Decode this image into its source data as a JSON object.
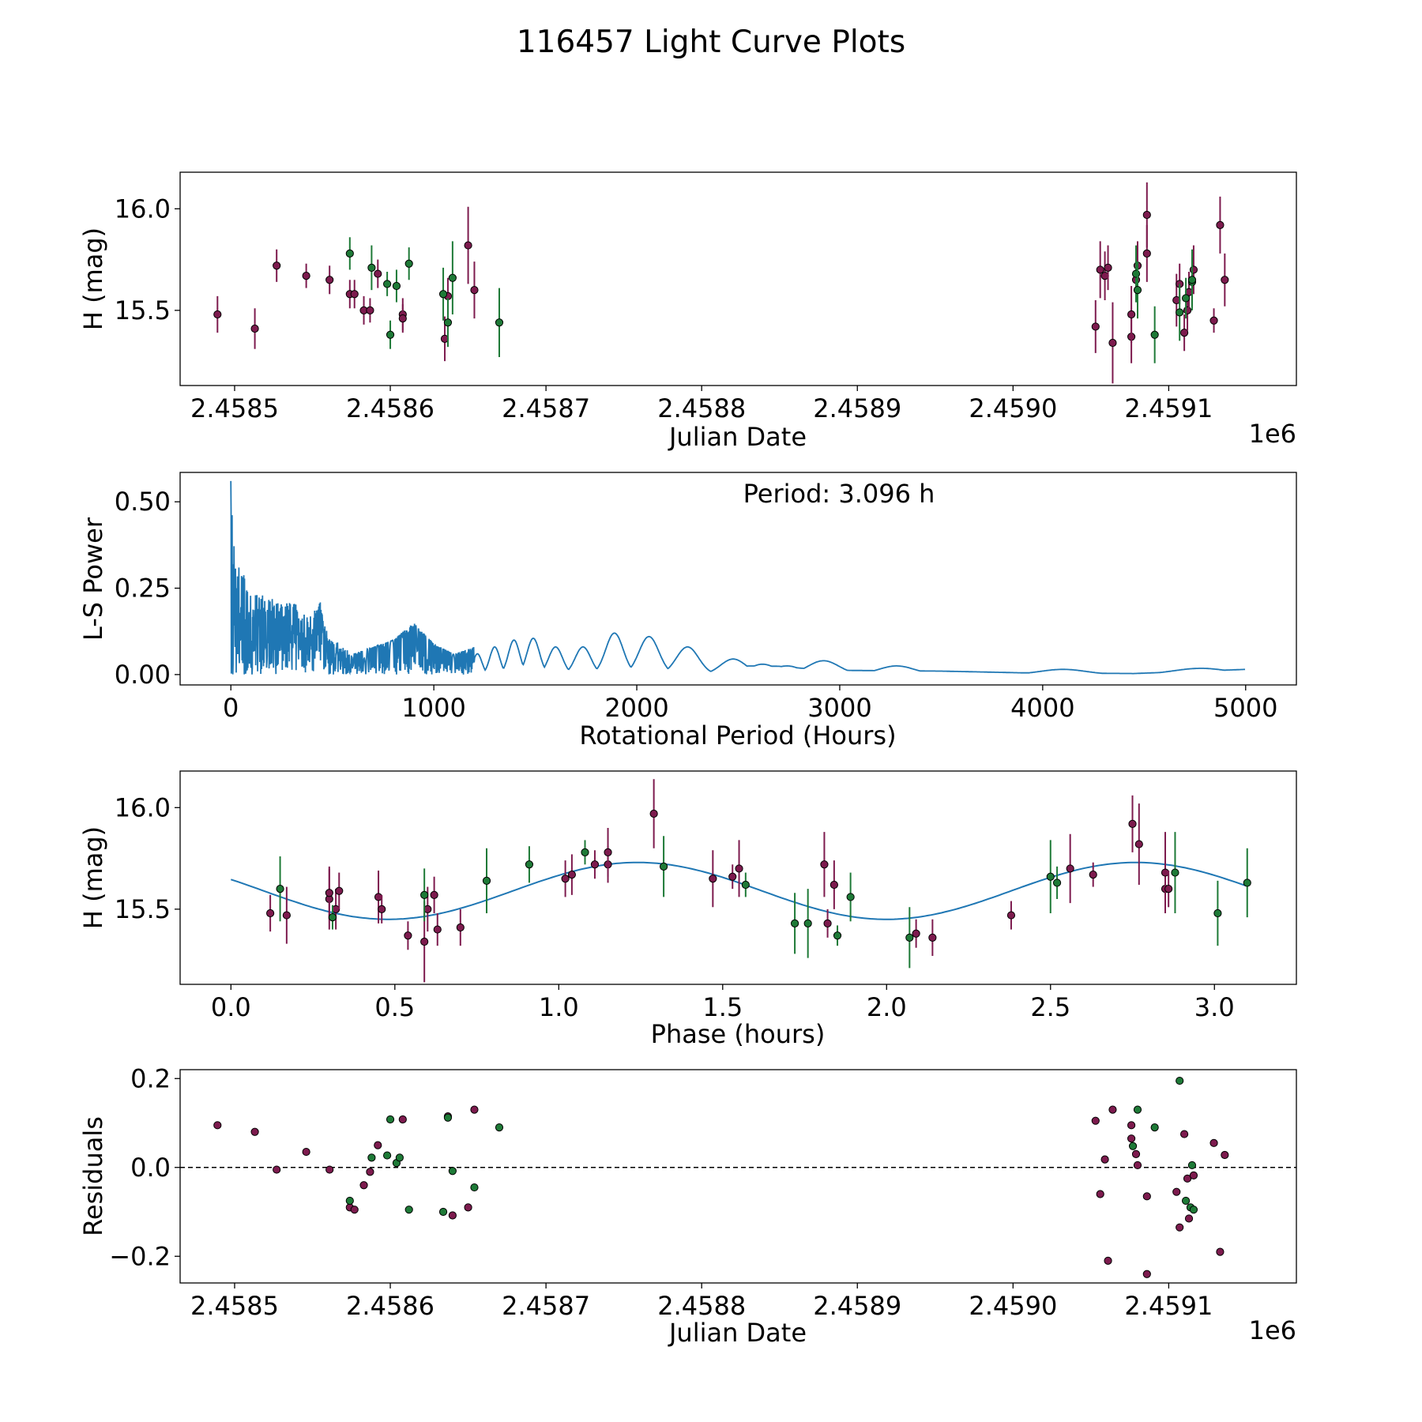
{
  "title": "116457 Light Curve Plots",
  "colors": {
    "maroon": "#7d1b4e",
    "green": "#1e7a37",
    "line": "#1f77b4",
    "axis": "#000000"
  },
  "chart_data": [
    {
      "type": "scatter",
      "id": "lightcurve",
      "xlabel": "Julian Date",
      "ylabel": "H (mag)",
      "offset_label": "1e6",
      "xlim": [
        2458465,
        2459182
      ],
      "ylim": [
        15.13,
        16.18
      ],
      "xticks": [
        2458500,
        2458600,
        2458700,
        2458800,
        2458900,
        2459000,
        2459100
      ],
      "xtick_labels": [
        "2.4585",
        "2.4586",
        "2.4587",
        "2.4588",
        "2.4589",
        "2.4590",
        "2.4591"
      ],
      "yticks": [
        15.5,
        16.0
      ],
      "ytick_labels": [
        "15.5",
        "16.0"
      ],
      "series": [
        {
          "name": "maroon",
          "color": "#7d1b4e",
          "points": [
            [
              2458489,
              15.48,
              0.09
            ],
            [
              2458513,
              15.41,
              0.1
            ],
            [
              2458527,
              15.72,
              0.08
            ],
            [
              2458546,
              15.67,
              0.06
            ],
            [
              2458561,
              15.65,
              0.07
            ],
            [
              2458574,
              15.58,
              0.07
            ],
            [
              2458577,
              15.58,
              0.07
            ],
            [
              2458583,
              15.5,
              0.07
            ],
            [
              2458587,
              15.5,
              0.06
            ],
            [
              2458592,
              15.68,
              0.07
            ],
            [
              2458608,
              15.48,
              0.08
            ],
            [
              2458608,
              15.46,
              0.07
            ],
            [
              2458635,
              15.36,
              0.11
            ],
            [
              2458637,
              15.57,
              0.09
            ],
            [
              2458650,
              15.82,
              0.19
            ],
            [
              2458654,
              15.6,
              0.14
            ],
            [
              2459053,
              15.42,
              0.13
            ],
            [
              2459056,
              15.7,
              0.14
            ],
            [
              2459059,
              15.67,
              0.12
            ],
            [
              2459061,
              15.71,
              0.11
            ],
            [
              2459064,
              15.34,
              0.2
            ],
            [
              2459076,
              15.37,
              0.13
            ],
            [
              2459076,
              15.48,
              0.14
            ],
            [
              2459079,
              15.65,
              0.11
            ],
            [
              2459080,
              15.72,
              0.12
            ],
            [
              2459086,
              15.78,
              0.14
            ],
            [
              2459086,
              15.97,
              0.16
            ],
            [
              2459105,
              15.55,
              0.13
            ],
            [
              2459107,
              15.63,
              0.1
            ],
            [
              2459110,
              15.39,
              0.09
            ],
            [
              2459112,
              15.5,
              0.1
            ],
            [
              2459113,
              15.59,
              0.1
            ],
            [
              2459116,
              15.7,
              0.12
            ],
            [
              2459129,
              15.45,
              0.06
            ],
            [
              2459133,
              15.92,
              0.14
            ],
            [
              2459136,
              15.65,
              0.13
            ]
          ]
        },
        {
          "name": "green",
          "color": "#1e7a37",
          "points": [
            [
              2458574,
              15.78,
              0.08
            ],
            [
              2458588,
              15.71,
              0.11
            ],
            [
              2458598,
              15.63,
              0.06
            ],
            [
              2458600,
              15.38,
              0.07
            ],
            [
              2458604,
              15.62,
              0.08
            ],
            [
              2458612,
              15.73,
              0.08
            ],
            [
              2458634,
              15.58,
              0.13
            ],
            [
              2458637,
              15.44,
              0.12
            ],
            [
              2458640,
              15.66,
              0.18
            ],
            [
              2458670,
              15.44,
              0.17
            ],
            [
              2459079,
              15.68,
              0.14
            ],
            [
              2459080,
              15.6,
              0.14
            ],
            [
              2459091,
              15.38,
              0.14
            ],
            [
              2459107,
              15.49,
              0.14
            ],
            [
              2459111,
              15.56,
              0.1
            ],
            [
              2459115,
              15.64,
              0.12
            ],
            [
              2459115,
              15.65,
              0.15
            ]
          ]
        }
      ]
    },
    {
      "type": "line",
      "id": "periodogram",
      "xlabel": "Rotational Period (Hours)",
      "ylabel": "L-S Power",
      "annotation": "Period: 3.096 h",
      "xlim": [
        -250,
        5250
      ],
      "ylim": [
        -0.03,
        0.585
      ],
      "xticks": [
        0,
        1000,
        2000,
        3000,
        4000,
        5000
      ],
      "xtick_labels": [
        "0",
        "1000",
        "2000",
        "3000",
        "4000",
        "5000"
      ],
      "yticks": [
        0,
        0.25,
        0.5
      ],
      "ytick_labels": [
        "0.00",
        "0.25",
        "0.50"
      ],
      "peak": {
        "x": 3.096,
        "y": 0.56
      },
      "envelope": [
        [
          0,
          0.56
        ],
        [
          20,
          0.32
        ],
        [
          60,
          0.3
        ],
        [
          100,
          0.26
        ],
        [
          150,
          0.23
        ],
        [
          200,
          0.22
        ],
        [
          260,
          0.2
        ],
        [
          300,
          0.22
        ],
        [
          350,
          0.18
        ],
        [
          400,
          0.17
        ],
        [
          440,
          0.22
        ],
        [
          480,
          0.12
        ],
        [
          550,
          0.08
        ],
        [
          600,
          0.06
        ],
        [
          650,
          0.07
        ],
        [
          700,
          0.08
        ],
        [
          800,
          0.1
        ],
        [
          900,
          0.15
        ],
        [
          1000,
          0.09
        ],
        [
          1100,
          0.06
        ],
        [
          1200,
          0.08
        ]
      ],
      "bumps": [
        [
          1215,
          0.06
        ],
        [
          1300,
          0.08
        ],
        [
          1395,
          0.1
        ],
        [
          1490,
          0.105
        ],
        [
          1600,
          0.08
        ],
        [
          1735,
          0.08
        ],
        [
          1890,
          0.12
        ],
        [
          2060,
          0.11
        ],
        [
          2250,
          0.08
        ],
        [
          2475,
          0.045
        ],
        [
          2620,
          0.03
        ],
        [
          2740,
          0.025
        ],
        [
          2920,
          0.04
        ],
        [
          3280,
          0.025
        ],
        [
          4100,
          0.015
        ],
        [
          4780,
          0.018
        ]
      ],
      "tail_floor": [
        [
          2350,
          0.005
        ],
        [
          2550,
          0.025
        ],
        [
          2700,
          0.024
        ],
        [
          2820,
          0.018
        ],
        [
          3050,
          0.012
        ],
        [
          3500,
          0.01
        ],
        [
          3900,
          0.005
        ],
        [
          4450,
          0.003
        ],
        [
          5000,
          0.015
        ]
      ]
    },
    {
      "type": "scatter",
      "id": "phase",
      "xlabel": "Phase (hours)",
      "ylabel": "H (mag)",
      "xlim": [
        -0.155,
        3.25
      ],
      "ylim": [
        15.13,
        16.18
      ],
      "xticks": [
        0,
        0.5,
        1.0,
        1.5,
        2.0,
        2.5,
        3.0
      ],
      "xtick_labels": [
        "0.0",
        "0.5",
        "1.0",
        "1.5",
        "2.0",
        "2.5",
        "3.0"
      ],
      "yticks": [
        15.5,
        16.0
      ],
      "ytick_labels": [
        "15.5",
        "16.0"
      ],
      "fit": {
        "mean": 15.59,
        "amplitude": 0.14,
        "period": 1.52,
        "peak_phase": 1.24,
        "x_range": [
          0,
          3.096
        ]
      },
      "series": [
        {
          "name": "maroon",
          "color": "#7d1b4e",
          "points": [
            [
              0.12,
              15.48,
              0.09
            ],
            [
              0.17,
              15.47,
              0.14
            ],
            [
              0.3,
              15.55,
              0.15
            ],
            [
              0.3,
              15.58,
              0.13
            ],
            [
              0.32,
              15.5,
              0.1
            ],
            [
              0.33,
              15.59,
              0.09
            ],
            [
              0.45,
              15.56,
              0.13
            ],
            [
              0.46,
              15.5,
              0.07
            ],
            [
              0.54,
              15.37,
              0.07
            ],
            [
              0.59,
              15.34,
              0.2
            ],
            [
              0.6,
              15.5,
              0.11
            ],
            [
              0.62,
              15.57,
              0.09
            ],
            [
              0.63,
              15.4,
              0.08
            ],
            [
              0.7,
              15.41,
              0.09
            ],
            [
              1.02,
              15.65,
              0.09
            ],
            [
              1.04,
              15.67,
              0.1
            ],
            [
              1.11,
              15.72,
              0.07
            ],
            [
              1.15,
              15.72,
              0.09
            ],
            [
              1.15,
              15.78,
              0.12
            ],
            [
              1.29,
              15.97,
              0.17
            ],
            [
              1.47,
              15.65,
              0.14
            ],
            [
              1.53,
              15.66,
              0.06
            ],
            [
              1.55,
              15.7,
              0.14
            ],
            [
              1.81,
              15.72,
              0.16
            ],
            [
              1.82,
              15.43,
              0.07
            ],
            [
              1.84,
              15.62,
              0.12
            ],
            [
              2.09,
              15.38,
              0.07
            ],
            [
              2.14,
              15.36,
              0.09
            ],
            [
              2.38,
              15.47,
              0.07
            ],
            [
              2.56,
              15.7,
              0.17
            ],
            [
              2.63,
              15.67,
              0.06
            ],
            [
              2.75,
              15.92,
              0.14
            ],
            [
              2.77,
              15.82,
              0.2
            ],
            [
              2.85,
              15.6,
              0.12
            ],
            [
              2.85,
              15.68,
              0.2
            ],
            [
              2.86,
              15.6,
              0.09
            ]
          ]
        },
        {
          "name": "green",
          "color": "#1e7a37",
          "points": [
            [
              0.15,
              15.6,
              0.16
            ],
            [
              0.31,
              15.46,
              0.06
            ],
            [
              0.59,
              15.57,
              0.13
            ],
            [
              0.78,
              15.64,
              0.16
            ],
            [
              0.91,
              15.72,
              0.09
            ],
            [
              1.08,
              15.78,
              0.06
            ],
            [
              1.32,
              15.71,
              0.15
            ],
            [
              1.57,
              15.62,
              0.06
            ],
            [
              1.72,
              15.43,
              0.15
            ],
            [
              1.76,
              15.43,
              0.17
            ],
            [
              1.85,
              15.37,
              0.05
            ],
            [
              1.89,
              15.56,
              0.12
            ],
            [
              2.07,
              15.36,
              0.15
            ],
            [
              2.5,
              15.66,
              0.18
            ],
            [
              2.52,
              15.63,
              0.08
            ],
            [
              2.88,
              15.68,
              0.2
            ],
            [
              3.01,
              15.48,
              0.16
            ],
            [
              3.1,
              15.63,
              0.17
            ]
          ]
        }
      ]
    },
    {
      "type": "scatter",
      "id": "residuals",
      "xlabel": "Julian Date",
      "ylabel": "Residuals",
      "offset_label": "1e6",
      "xlim": [
        2458465,
        2459182
      ],
      "ylim": [
        -0.26,
        0.22
      ],
      "zero_line": true,
      "xticks": [
        2458500,
        2458600,
        2458700,
        2458800,
        2458900,
        2459000,
        2459100
      ],
      "xtick_labels": [
        "2.4585",
        "2.4586",
        "2.4587",
        "2.4588",
        "2.4589",
        "2.4590",
        "2.4591"
      ],
      "yticks": [
        -0.2,
        0,
        0.2
      ],
      "ytick_labels": [
        "−0.2",
        "0.0",
        "0.2"
      ],
      "series": [
        {
          "name": "maroon",
          "color": "#7d1b4e",
          "points": [
            [
              2458489,
              0.095
            ],
            [
              2458513,
              0.08
            ],
            [
              2458527,
              -0.005
            ],
            [
              2458546,
              0.035
            ],
            [
              2458561,
              -0.005
            ],
            [
              2458574,
              -0.09
            ],
            [
              2458577,
              -0.095
            ],
            [
              2458583,
              -0.04
            ],
            [
              2458587,
              -0.01
            ],
            [
              2458592,
              0.05
            ],
            [
              2458608,
              0.108
            ],
            [
              2458637,
              0.115
            ],
            [
              2458640,
              -0.108
            ],
            [
              2458650,
              -0.09
            ],
            [
              2458654,
              0.13
            ],
            [
              2459053,
              0.105
            ],
            [
              2459056,
              -0.06
            ],
            [
              2459059,
              0.018
            ],
            [
              2459061,
              -0.21
            ],
            [
              2459064,
              0.13
            ],
            [
              2459076,
              0.095
            ],
            [
              2459076,
              0.065
            ],
            [
              2459079,
              0.03
            ],
            [
              2459080,
              0.005
            ],
            [
              2459086,
              -0.24
            ],
            [
              2459086,
              -0.065
            ],
            [
              2459105,
              -0.055
            ],
            [
              2459107,
              -0.135
            ],
            [
              2459110,
              0.075
            ],
            [
              2459112,
              -0.025
            ],
            [
              2459113,
              -0.115
            ],
            [
              2459116,
              -0.018
            ],
            [
              2459129,
              0.055
            ],
            [
              2459133,
              -0.19
            ],
            [
              2459136,
              0.028
            ]
          ]
        },
        {
          "name": "green",
          "color": "#1e7a37",
          "points": [
            [
              2458574,
              -0.075
            ],
            [
              2458588,
              0.022
            ],
            [
              2458598,
              0.027
            ],
            [
              2458600,
              0.108
            ],
            [
              2458604,
              0.01
            ],
            [
              2458606,
              0.022
            ],
            [
              2458612,
              -0.095
            ],
            [
              2458634,
              -0.1
            ],
            [
              2458637,
              0.112
            ],
            [
              2458640,
              -0.008
            ],
            [
              2458654,
              -0.045
            ],
            [
              2458670,
              0.09
            ],
            [
              2459077,
              0.048
            ],
            [
              2459080,
              0.13
            ],
            [
              2459091,
              0.09
            ],
            [
              2459107,
              0.195
            ],
            [
              2459111,
              -0.075
            ],
            [
              2459114,
              -0.09
            ],
            [
              2459115,
              0.005
            ],
            [
              2459116,
              -0.095
            ]
          ]
        }
      ]
    }
  ]
}
